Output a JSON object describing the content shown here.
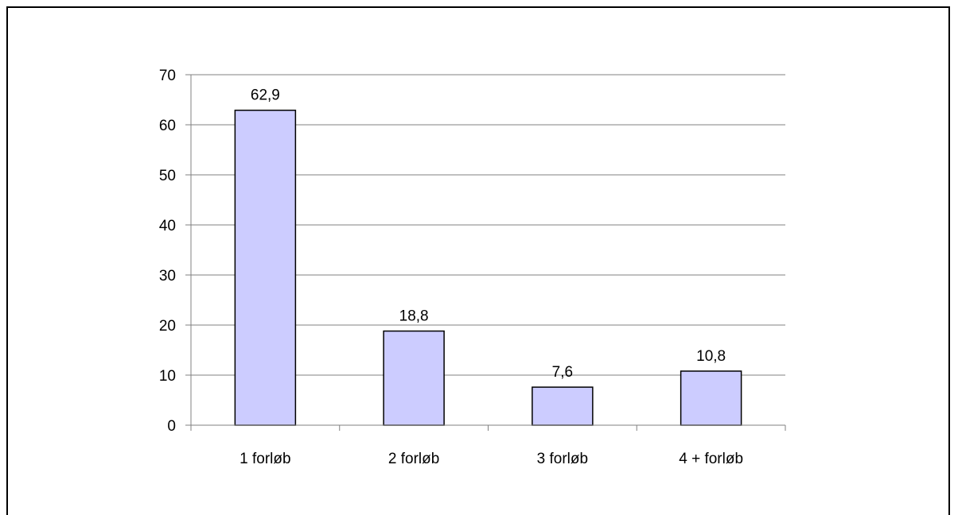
{
  "chart_data": {
    "type": "bar",
    "title": "",
    "xlabel": "",
    "ylabel": "",
    "categories": [
      "1 forløb",
      "2 forløb",
      "3 forløb",
      "4 + forløb"
    ],
    "values": [
      62.9,
      18.8,
      7.6,
      10.8
    ],
    "data_labels": [
      "62,9",
      "18,8",
      "7,6",
      "10,8"
    ],
    "ylim": [
      0,
      70
    ],
    "yticks": [
      0,
      10,
      20,
      30,
      40,
      50,
      60,
      70
    ],
    "grid": true,
    "legend": "none",
    "colors": {
      "bar_fill": "#ccccff",
      "bar_stroke": "#000000",
      "grid": "#808080",
      "axis": "#808080"
    }
  }
}
